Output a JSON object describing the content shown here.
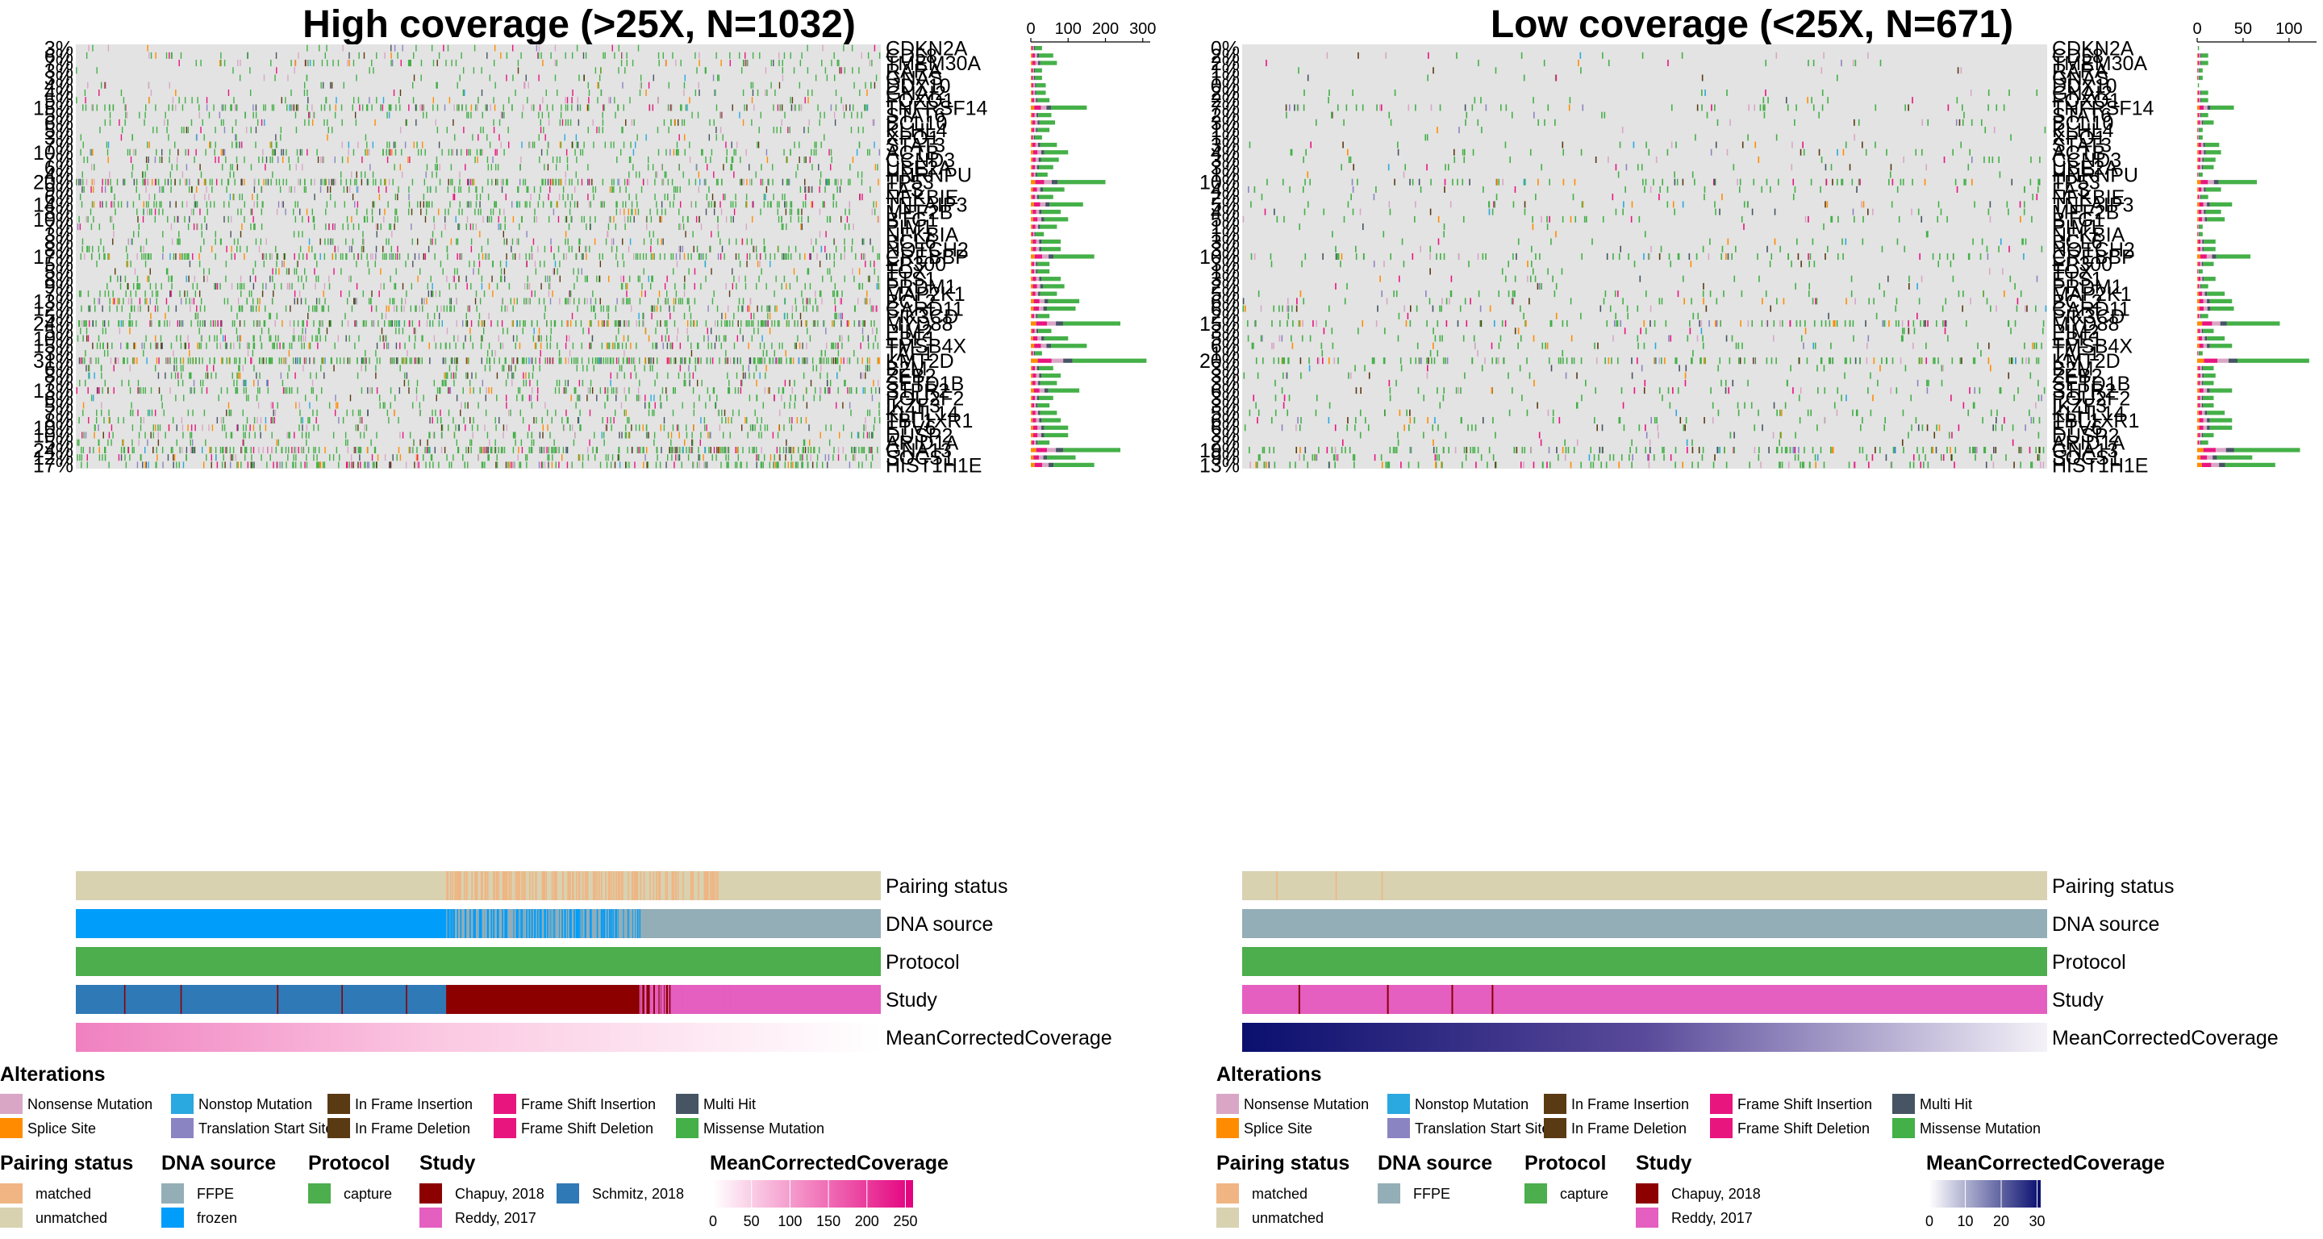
{
  "colors": {
    "background_cell": "#e3e3e3",
    "nonsense": "#d9a6c6",
    "splice": "#ff8c00",
    "nonstop": "#2aa8e0",
    "translation_start": "#8b84c2",
    "in_frame_insertion": "#5a3a12",
    "in_frame_deletion": "#5a3a12",
    "frame_shift_insertion": "#e8157f",
    "frame_shift_deletion": "#e8157f",
    "multi_hit": "#465463",
    "missense": "#44b048",
    "pairing_matched": "#f0b583",
    "pairing_unmatched": "#d8d2b1",
    "dna_ffpe": "#93aeb6",
    "dna_frozen": "#009dfa",
    "protocol_capture": "#4cae4c",
    "study_chapuy": "#8c0000",
    "study_schmitz": "#3079b7",
    "study_reddy": "#e45fc0",
    "cov_high_low": "#ffffff",
    "cov_high_high": "#e4007e",
    "cov_low_low": "#ffffff",
    "cov_low_high": "#080e6e"
  },
  "chart_data": [
    {
      "type": "heatmap",
      "subtype": "oncoprint",
      "title": "High coverage (>25X, N=1032)",
      "n_samples": 1032,
      "genes": [
        "CDKN2A",
        "CD58",
        "TMEM30A",
        "RARA",
        "GNAS",
        "DDX10",
        "GNAI2",
        "FOXO1",
        "TNFRSF14",
        "STAT6",
        "BCL10",
        "KLHL4",
        "XPO1",
        "STAT3",
        "ACTB",
        "CCND3",
        "UBE2A",
        "HNRNPU",
        "TP53",
        "FAS",
        "NFKBIE",
        "TNFAIP3",
        "MEF2B",
        "BTG1",
        "PIM1",
        "NFKBIA",
        "BCL6",
        "NOTCH2",
        "CREBBP",
        "EP300",
        "TOX",
        "ETS1",
        "PRDM1",
        "MAP2K1",
        "BCL2",
        "CARD11",
        "PIK3CD",
        "MYD88",
        "PIM2",
        "EBF1",
        "TMSB4X",
        "TAF1",
        "KMT2D",
        "B2M",
        "ZEB2",
        "SETD1B",
        "S1PR2",
        "POU2F2",
        "IKZF3",
        "KLHL14",
        "TBL1XR1",
        "ETV6",
        "DUSP2",
        "ARID1A",
        "GNA13",
        "SOCS1",
        "HIST1H1E"
      ],
      "percent_labels": [
        "3%",
        "6%",
        "7%",
        "3%",
        "3%",
        "4%",
        "4%",
        "5%",
        "15%",
        "5%",
        "6%",
        "5%",
        "3%",
        "7%",
        "10%",
        "7%",
        "6%",
        "4%",
        "20%",
        "9%",
        "6%",
        "14%",
        "8%",
        "10%",
        "7%",
        "3%",
        "8%",
        "8%",
        "17%",
        "5%",
        "5%",
        "8%",
        "9%",
        "7%",
        "13%",
        "12%",
        "5%",
        "24%",
        "5%",
        "10%",
        "15%",
        "3%",
        "31%",
        "6%",
        "8%",
        "7%",
        "13%",
        "6%",
        "5%",
        "7%",
        "8%",
        "10%",
        "10%",
        "5%",
        "24%",
        "12%",
        "17%"
      ],
      "row_bar_totals": [
        30,
        60,
        70,
        30,
        30,
        40,
        40,
        50,
        150,
        55,
        65,
        50,
        30,
        70,
        100,
        75,
        60,
        45,
        200,
        90,
        60,
        140,
        80,
        100,
        70,
        35,
        80,
        80,
        170,
        50,
        50,
        80,
        90,
        70,
        130,
        120,
        50,
        240,
        55,
        100,
        150,
        30,
        310,
        60,
        80,
        70,
        130,
        60,
        50,
        70,
        80,
        100,
        100,
        50,
        240,
        120,
        170
      ],
      "bar_axis": {
        "ticks": [
          0,
          100,
          200,
          300
        ],
        "max": 320
      },
      "annotations": [
        "Pairing status",
        "DNA source",
        "Protocol",
        "Study",
        "MeanCorrectedCoverage"
      ],
      "coverage_legend": {
        "title": "MeanCorrectedCoverage",
        "ticks": [
          0,
          50,
          100,
          150,
          200,
          250
        ],
        "max": 260
      }
    },
    {
      "type": "heatmap",
      "subtype": "oncoprint",
      "title": "Low coverage (<25X, N=671)",
      "n_samples": 671,
      "genes": [
        "CDKN2A",
        "CD58",
        "TMEM30A",
        "RARA",
        "GNAS",
        "DDX10",
        "GNAI2",
        "FOXO1",
        "TNFRSF14",
        "STAT6",
        "BCL10",
        "KLHL4",
        "XPO1",
        "STAT3",
        "ACTB",
        "CCND3",
        "UBE2A",
        "HNRNPU",
        "TP53",
        "FAS",
        "NFKBIE",
        "TNFAIP3",
        "MEF2B",
        "BTG1",
        "PIM1",
        "NFKBIA",
        "BCL6",
        "NOTCH2",
        "CREBBP",
        "EP300",
        "TOX",
        "ETS1",
        "PRDM1",
        "MAP2K1",
        "BCL2",
        "CARD11",
        "PIK3CD",
        "MYD88",
        "PIM2",
        "EBF1",
        "TMSB4X",
        "TAF1",
        "KMT2D",
        "B2M",
        "ZEB2",
        "SETD1B",
        "S1PR2",
        "POU2F2",
        "IKZF3",
        "KLHL14",
        "TBL1XR1",
        "ETV6",
        "DUSP2",
        "ARID1A",
        "GNA13",
        "SOCS1",
        "HIST1H1E"
      ],
      "percent_labels": [
        "0%",
        "2%",
        "2%",
        "1%",
        "1%",
        "0%",
        "2%",
        "2%",
        "7%",
        "2%",
        "3%",
        "1%",
        "1%",
        "3%",
        "4%",
        "3%",
        "3%",
        "1%",
        "10%",
        "4%",
        "2%",
        "5%",
        "4%",
        "5%",
        "1%",
        "1%",
        "3%",
        "3%",
        "10%",
        "3%",
        "1%",
        "3%",
        "2%",
        "5%",
        "6%",
        "6%",
        "2%",
        "15%",
        "3%",
        "5%",
        "6%",
        "1%",
        "20%",
        "3%",
        "3%",
        "3%",
        "6%",
        "3%",
        "3%",
        "5%",
        "6%",
        "6%",
        "3%",
        "2%",
        "19%",
        "9%",
        "13%"
      ],
      "row_bar_totals": [
        2,
        12,
        12,
        6,
        6,
        2,
        12,
        12,
        40,
        12,
        18,
        6,
        6,
        24,
        26,
        20,
        18,
        6,
        65,
        26,
        12,
        38,
        26,
        30,
        6,
        6,
        20,
        20,
        58,
        18,
        6,
        20,
        12,
        30,
        38,
        40,
        12,
        90,
        18,
        30,
        38,
        6,
        122,
        18,
        20,
        18,
        38,
        18,
        18,
        30,
        38,
        38,
        18,
        12,
        112,
        60,
        85
      ],
      "bar_axis": {
        "ticks": [
          0,
          50,
          100
        ],
        "max": 130
      },
      "annotations": [
        "Pairing status",
        "DNA source",
        "Protocol",
        "Study",
        "MeanCorrectedCoverage"
      ],
      "coverage_legend": {
        "title": "MeanCorrectedCoverage",
        "ticks": [
          0,
          10,
          20,
          30
        ],
        "max": 31
      }
    }
  ],
  "legend": {
    "alterations_title": "Alterations",
    "alterations": [
      {
        "label": "Nonsense Mutation",
        "color_key": "nonsense"
      },
      {
        "label": "Nonstop Mutation",
        "color_key": "nonstop"
      },
      {
        "label": "In Frame Insertion",
        "color_key": "in_frame_insertion"
      },
      {
        "label": "Frame Shift Insertion",
        "color_key": "frame_shift_insertion"
      },
      {
        "label": "Multi Hit",
        "color_key": "multi_hit"
      },
      {
        "label": "Splice Site",
        "color_key": "splice"
      },
      {
        "label": "Translation Start Site",
        "color_key": "translation_start"
      },
      {
        "label": "In Frame Deletion",
        "color_key": "in_frame_deletion"
      },
      {
        "label": "Frame Shift Deletion",
        "color_key": "frame_shift_deletion"
      },
      {
        "label": "Missense Mutation",
        "color_key": "missense"
      }
    ],
    "pairing_title": "Pairing status",
    "pairing": [
      {
        "label": "matched",
        "color_key": "pairing_matched"
      },
      {
        "label": "unmatched",
        "color_key": "pairing_unmatched"
      }
    ],
    "dna_title": "DNA source",
    "dna_high": [
      {
        "label": "FFPE",
        "color_key": "dna_ffpe"
      },
      {
        "label": "frozen",
        "color_key": "dna_frozen"
      }
    ],
    "dna_low": [
      {
        "label": "FFPE",
        "color_key": "dna_ffpe"
      }
    ],
    "protocol_title": "Protocol",
    "protocol": [
      {
        "label": "capture",
        "color_key": "protocol_capture"
      }
    ],
    "study_title": "Study",
    "study_high": [
      {
        "label": "Chapuy, 2018",
        "color_key": "study_chapuy"
      },
      {
        "label": "Schmitz, 2018",
        "color_key": "study_schmitz"
      },
      {
        "label": "Reddy, 2017",
        "color_key": "study_reddy"
      }
    ],
    "study_low": [
      {
        "label": "Chapuy, 2018",
        "color_key": "study_chapuy"
      },
      {
        "label": "Reddy, 2017",
        "color_key": "study_reddy"
      }
    ],
    "coverage_title": "MeanCorrectedCoverage"
  }
}
